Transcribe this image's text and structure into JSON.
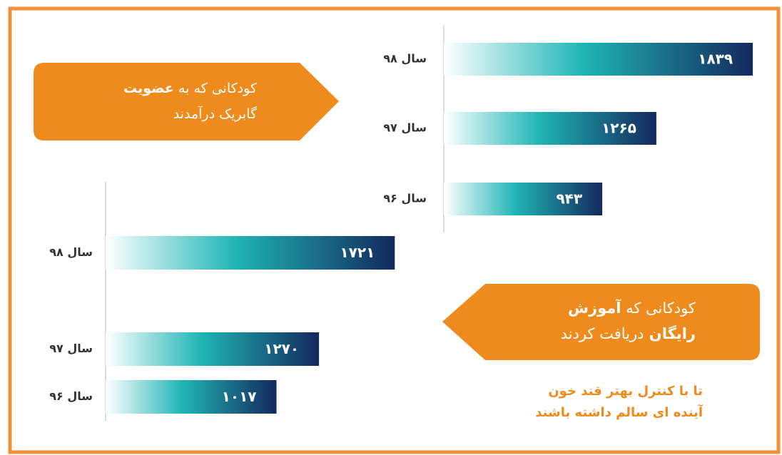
{
  "chart_data": [
    {
      "type": "bar",
      "orientation": "horizontal",
      "title": [
        [
          {
            "text": "کودکانی که به",
            "bold": false
          },
          {
            "text": "عضویت",
            "bold": true
          }
        ],
        [
          {
            "text": "گابریک درآمدند",
            "bold": false
          }
        ]
      ],
      "categories": [
        "سال ۹۸",
        "سال ۹۷",
        "سال ۹۶"
      ],
      "values": [
        1839,
        1265,
        943
      ],
      "value_labels": [
        "۱۸۳۹",
        "۱۲۶۵",
        "۹۴۳"
      ],
      "color": "#1a3a6e"
    },
    {
      "type": "bar",
      "orientation": "horizontal",
      "title": [
        [
          {
            "text": "کودکانی که",
            "bold": false
          },
          {
            "text": "آموزش",
            "bold": true
          }
        ],
        [
          {
            "text": "رایگان",
            "bold": true
          },
          {
            "text": "دریافت کردند",
            "bold": false
          }
        ]
      ],
      "categories": [
        "سال ۹۸",
        "سال ۹۷",
        "سال ۹۶"
      ],
      "values": [
        1721,
        1270,
        1017
      ],
      "value_labels": [
        "۱۷۲۱",
        "۱۲۷۰",
        "۱۰۱۷"
      ],
      "color": "#1a3a6e",
      "annotation": [
        "تا با کنترل بهتر قند خون",
        "آینده ای سالم داشته باشند"
      ]
    }
  ]
}
